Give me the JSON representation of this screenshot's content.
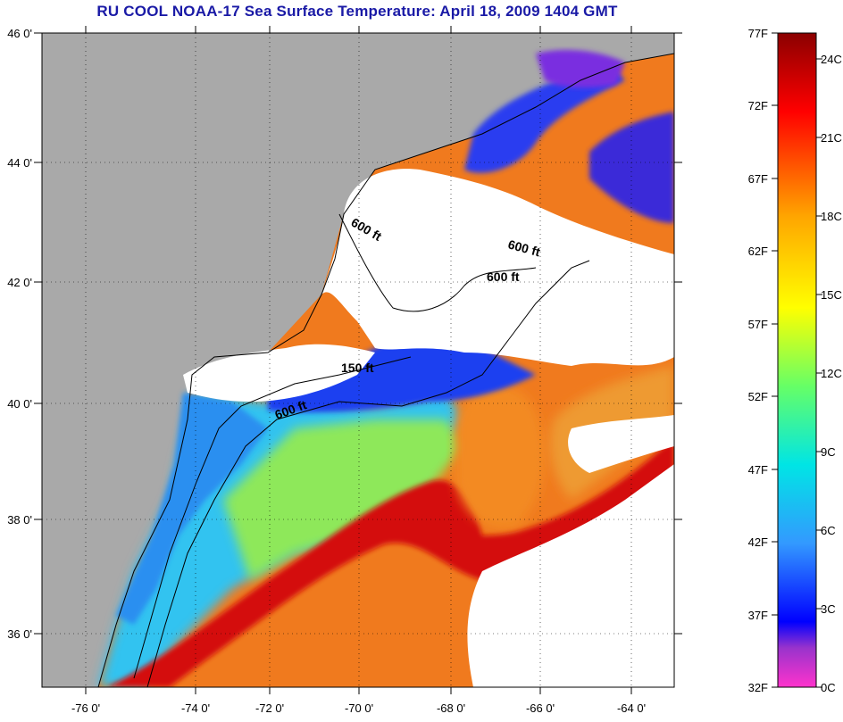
{
  "title": "RU COOL  NOAA-17  Sea Surface Temperature:  April 18, 2009 1404 GMT",
  "map": {
    "lon_range": [
      -77,
      -63
    ],
    "lat_range": [
      35,
      46
    ],
    "lat_labels": [
      "46 0'",
      "44 0'",
      "42 0'",
      "40 0'",
      "38 0'",
      "36 0'"
    ],
    "lon_labels": [
      "-76 0'",
      "-74 0'",
      "-72 0'",
      "-70 0'",
      "-68 0'",
      "-66 0'",
      "-64 0'"
    ],
    "contour_labels": [
      "600 ft",
      "600 ft",
      "600 ft",
      "150 ft",
      "600 ft"
    ],
    "colors": {
      "land": "#a9a9a9",
      "cloud": "#ffffff",
      "gulf_stream": "#d41010",
      "warm_water": "#f07a1e",
      "shelf_water": "#2aa3f0",
      "cold_water": "#1a3cf0"
    }
  },
  "colorbar": {
    "range_f": [
      32,
      77
    ],
    "range_c": [
      0,
      25
    ],
    "fahrenheit_labels": [
      "77F",
      "72F",
      "67F",
      "62F",
      "57F",
      "52F",
      "47F",
      "42F",
      "37F",
      "32F"
    ],
    "celsius_labels": [
      "24C",
      "21C",
      "18C",
      "15C",
      "12C",
      "9C",
      "6C",
      "3C",
      "0C"
    ],
    "stops": [
      "#ff33cc",
      "#9933cc",
      "#0000ff",
      "#3399ff",
      "#00e5e5",
      "#66ff66",
      "#ffff00",
      "#ffa500",
      "#ff0000",
      "#8b0000"
    ]
  }
}
